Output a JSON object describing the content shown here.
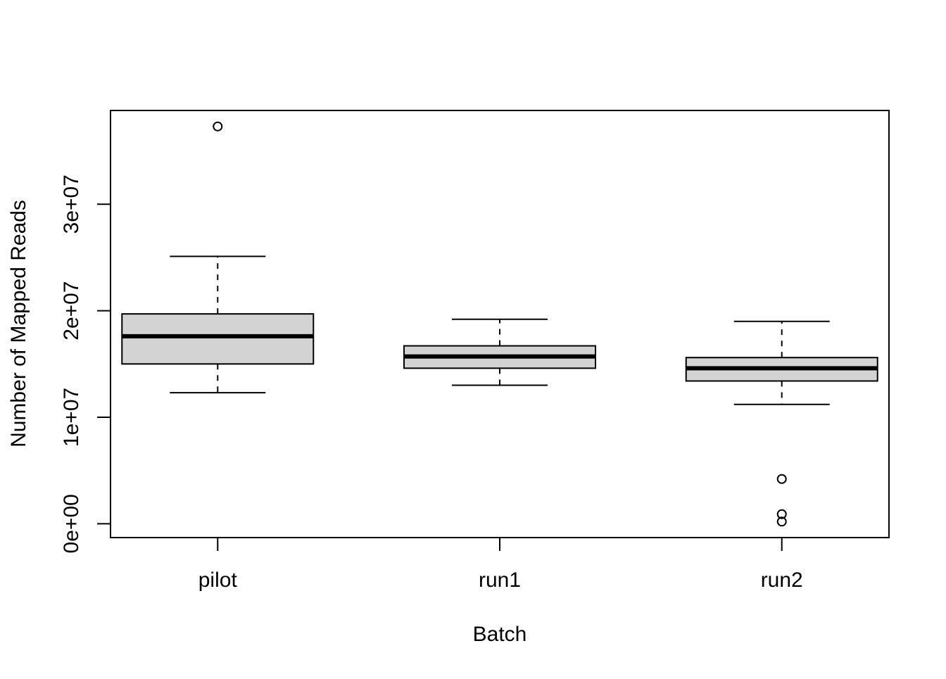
{
  "chart_data": {
    "type": "boxplot",
    "xlabel": "Batch",
    "ylabel": "Number of Mapped Reads",
    "categories": [
      "pilot",
      "run1",
      "run2"
    ],
    "ylim": [
      -1300000,
      38800000
    ],
    "y_ticks": [
      0,
      10000000,
      20000000,
      30000000
    ],
    "y_tick_labels": [
      "0e+00",
      "1e+07",
      "2e+07",
      "3e+07"
    ],
    "grid": false,
    "boxes": [
      {
        "category": "pilot",
        "whisker_low": 12300000,
        "q1": 15000000,
        "median": 17600000,
        "q3": 19700000,
        "whisker_high": 25100000,
        "outliers": [
          37300000
        ]
      },
      {
        "category": "run1",
        "whisker_low": 13000000,
        "q1": 14600000,
        "median": 15700000,
        "q3": 16700000,
        "whisker_high": 19200000,
        "outliers": []
      },
      {
        "category": "run2",
        "whisker_low": 11200000,
        "q1": 13400000,
        "median": 14600000,
        "q3": 15600000,
        "whisker_high": 19000000,
        "outliers": [
          4200000,
          900000,
          200000
        ]
      }
    ],
    "colors": {
      "box_fill": "#d3d3d3",
      "stroke": "#000000",
      "background": "#ffffff"
    }
  }
}
